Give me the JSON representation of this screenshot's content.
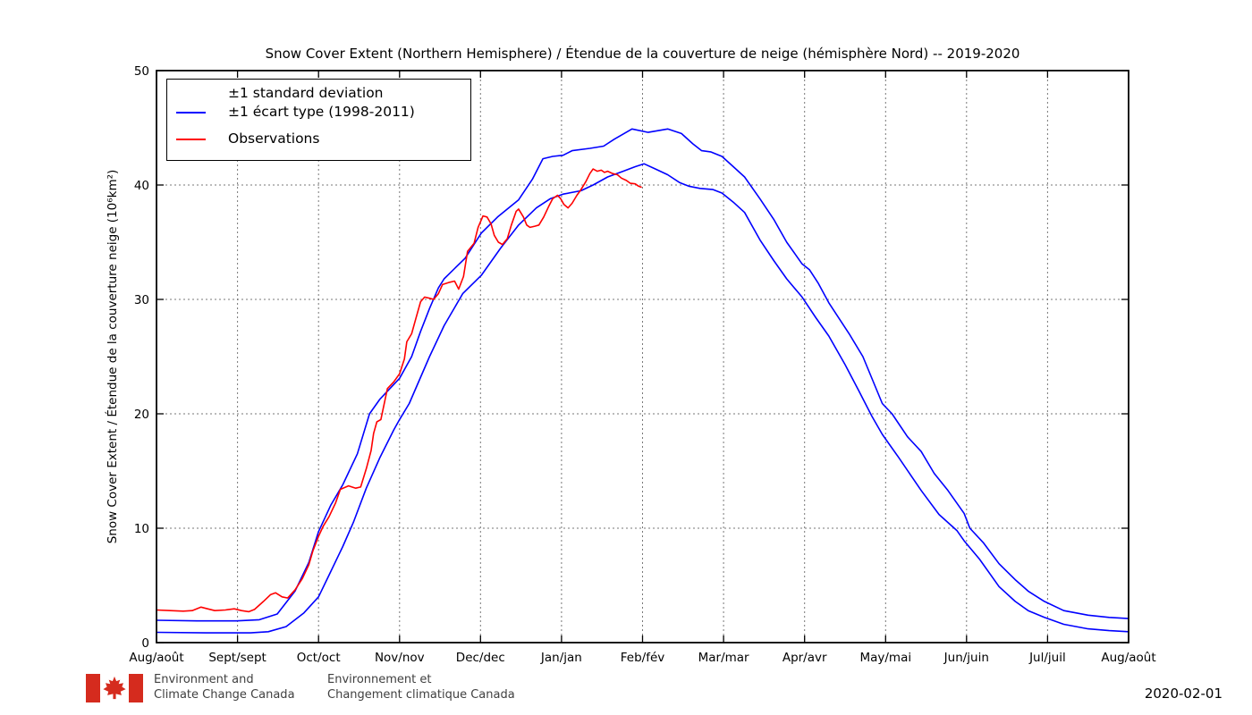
{
  "title": "Snow Cover Extent (Northern Hemisphere) / Étendue de la couverture de neige (hémisphère Nord) -- 2019-2020",
  "legend": {
    "std_line1": "±1 standard deviation",
    "std_line2": "±1 écart type (1998-2011)",
    "obs": "Observations"
  },
  "footer": {
    "dept_en_line1": "Environment and",
    "dept_en_line2": "Climate Change Canada",
    "dept_fr_line1": "Environnement et",
    "dept_fr_line2": "Changement climatique Canada",
    "date": "2020-02-01"
  },
  "colors": {
    "band": "#0000ff",
    "observations": "#ff0000",
    "grid": "#777777",
    "frame": "#000000",
    "flag_red": "#d52b1e",
    "footer_text": "#3f3f3f"
  },
  "chart_data": {
    "type": "line",
    "title": "Snow Cover Extent (Northern Hemisphere) / Étendue de la couverture de neige (hémisphère Nord) -- 2019-2020",
    "ylabel": "Snow Cover Extent / Étendue de la couverture neige (10⁶km²)",
    "xlabel": "",
    "x_unit": "months since Aug 1 (0 = Aug 1 2019, 12 = Aug 1 2020)",
    "x_tick_labels": [
      "Aug/août",
      "Sept/sept",
      "Oct/oct",
      "Nov/nov",
      "Dec/dec",
      "Jan/jan",
      "Feb/fév",
      "Mar/mar",
      "Apr/avr",
      "May/mai",
      "Jun/juin",
      "Jul/juil",
      "Aug/août"
    ],
    "y_ticks": [
      0,
      10,
      20,
      30,
      40,
      50
    ],
    "ylim": [
      0,
      50
    ],
    "xlim": [
      0,
      12
    ],
    "grid": "dotted",
    "legend_position": "upper left",
    "series": [
      {
        "name": "std_upper",
        "label": "±1 standard deviation / ±1 écart type (1998-2011) — upper",
        "color": "#0000ff",
        "points": [
          [
            0,
            1.95
          ],
          [
            0.5,
            1.9
          ],
          [
            0.99,
            1.9
          ],
          [
            1.27,
            2.0
          ],
          [
            1.49,
            2.5
          ],
          [
            1.71,
            4.5
          ],
          [
            1.88,
            7.0
          ],
          [
            2.0,
            9.7
          ],
          [
            2.15,
            12.0
          ],
          [
            2.3,
            13.8
          ],
          [
            2.48,
            16.5
          ],
          [
            2.63,
            20.0
          ],
          [
            2.76,
            21.3
          ],
          [
            3.0,
            23.1
          ],
          [
            3.15,
            25.0
          ],
          [
            3.26,
            27.2
          ],
          [
            3.37,
            29.2
          ],
          [
            3.48,
            31.0
          ],
          [
            3.55,
            31.8
          ],
          [
            3.81,
            33.6
          ],
          [
            4.01,
            35.8
          ],
          [
            4.21,
            37.2
          ],
          [
            4.47,
            38.7
          ],
          [
            4.64,
            40.5
          ],
          [
            4.77,
            42.3
          ],
          [
            4.89,
            42.5
          ],
          [
            5.02,
            42.6
          ],
          [
            5.13,
            43.0
          ],
          [
            5.35,
            43.2
          ],
          [
            5.52,
            43.4
          ],
          [
            5.65,
            44.0
          ],
          [
            5.87,
            44.9
          ],
          [
            6.07,
            44.6
          ],
          [
            6.31,
            44.9
          ],
          [
            6.48,
            44.5
          ],
          [
            6.62,
            43.6
          ],
          [
            6.73,
            43.0
          ],
          [
            6.84,
            42.9
          ],
          [
            6.98,
            42.5
          ],
          [
            7.12,
            41.6
          ],
          [
            7.26,
            40.7
          ],
          [
            7.45,
            38.8
          ],
          [
            7.62,
            37.0
          ],
          [
            7.78,
            35.0
          ],
          [
            7.97,
            33.1
          ],
          [
            8.06,
            32.6
          ],
          [
            8.17,
            31.4
          ],
          [
            8.3,
            29.7
          ],
          [
            8.55,
            27.0
          ],
          [
            8.72,
            25.0
          ],
          [
            8.96,
            20.9
          ],
          [
            9.08,
            20.0
          ],
          [
            9.27,
            18.0
          ],
          [
            9.44,
            16.7
          ],
          [
            9.6,
            14.8
          ],
          [
            9.77,
            13.3
          ],
          [
            9.97,
            11.3
          ],
          [
            10.04,
            10.0
          ],
          [
            10.21,
            8.7
          ],
          [
            10.4,
            6.9
          ],
          [
            10.6,
            5.5
          ],
          [
            10.76,
            4.5
          ],
          [
            10.96,
            3.6
          ],
          [
            11.2,
            2.8
          ],
          [
            11.5,
            2.4
          ],
          [
            11.76,
            2.2
          ],
          [
            12,
            2.1
          ]
        ]
      },
      {
        "name": "std_lower",
        "label": "±1 standard deviation / ±1 écart type (1998-2011) — lower",
        "color": "#0000ff",
        "points": [
          [
            0,
            0.9
          ],
          [
            0.61,
            0.85
          ],
          [
            1.16,
            0.85
          ],
          [
            1.38,
            0.95
          ],
          [
            1.6,
            1.4
          ],
          [
            1.82,
            2.6
          ],
          [
            2.0,
            4.0
          ],
          [
            2.15,
            6.2
          ],
          [
            2.3,
            8.4
          ],
          [
            2.43,
            10.5
          ],
          [
            2.59,
            13.5
          ],
          [
            2.76,
            16.2
          ],
          [
            2.93,
            18.6
          ],
          [
            3.0,
            19.5
          ],
          [
            3.12,
            20.9
          ],
          [
            3.37,
            25.0
          ],
          [
            3.55,
            27.7
          ],
          [
            3.78,
            30.5
          ],
          [
            4.01,
            32.1
          ],
          [
            4.25,
            34.5
          ],
          [
            4.47,
            36.5
          ],
          [
            4.69,
            38.0
          ],
          [
            4.86,
            38.8
          ],
          [
            5.02,
            39.2
          ],
          [
            5.24,
            39.5
          ],
          [
            5.39,
            40.0
          ],
          [
            5.57,
            40.7
          ],
          [
            5.76,
            41.2
          ],
          [
            5.91,
            41.6
          ],
          [
            6.02,
            41.85
          ],
          [
            6.16,
            41.4
          ],
          [
            6.31,
            40.9
          ],
          [
            6.46,
            40.2
          ],
          [
            6.57,
            39.9
          ],
          [
            6.71,
            39.7
          ],
          [
            6.87,
            39.6
          ],
          [
            6.98,
            39.3
          ],
          [
            7.12,
            38.5
          ],
          [
            7.26,
            37.6
          ],
          [
            7.45,
            35.2
          ],
          [
            7.62,
            33.4
          ],
          [
            7.78,
            31.8
          ],
          [
            7.97,
            30.2
          ],
          [
            8.14,
            28.4
          ],
          [
            8.3,
            26.8
          ],
          [
            8.5,
            24.3
          ],
          [
            8.67,
            22.0
          ],
          [
            8.83,
            19.8
          ],
          [
            8.96,
            18.2
          ],
          [
            9.16,
            16.2
          ],
          [
            9.44,
            13.3
          ],
          [
            9.66,
            11.2
          ],
          [
            9.88,
            9.8
          ],
          [
            9.97,
            8.9
          ],
          [
            10.16,
            7.3
          ],
          [
            10.4,
            4.9
          ],
          [
            10.6,
            3.6
          ],
          [
            10.76,
            2.8
          ],
          [
            10.96,
            2.2
          ],
          [
            11.2,
            1.6
          ],
          [
            11.5,
            1.2
          ],
          [
            11.76,
            1.05
          ],
          [
            12,
            0.95
          ]
        ]
      },
      {
        "name": "observations",
        "label": "Observations",
        "color": "#ff0000",
        "points": [
          [
            0,
            2.85
          ],
          [
            0.17,
            2.8
          ],
          [
            0.33,
            2.75
          ],
          [
            0.44,
            2.8
          ],
          [
            0.55,
            3.1
          ],
          [
            0.63,
            2.95
          ],
          [
            0.72,
            2.8
          ],
          [
            0.85,
            2.85
          ],
          [
            0.96,
            2.95
          ],
          [
            1.05,
            2.8
          ],
          [
            1.14,
            2.7
          ],
          [
            1.21,
            2.9
          ],
          [
            1.32,
            3.6
          ],
          [
            1.41,
            4.2
          ],
          [
            1.47,
            4.35
          ],
          [
            1.55,
            4.0
          ],
          [
            1.62,
            3.9
          ],
          [
            1.71,
            4.6
          ],
          [
            1.8,
            5.6
          ],
          [
            1.88,
            6.8
          ],
          [
            1.93,
            8.0
          ],
          [
            2.0,
            9.3
          ],
          [
            2.06,
            10.2
          ],
          [
            2.13,
            11.0
          ],
          [
            2.21,
            12.2
          ],
          [
            2.27,
            13.4
          ],
          [
            2.37,
            13.7
          ],
          [
            2.46,
            13.5
          ],
          [
            2.52,
            13.6
          ],
          [
            2.59,
            15.2
          ],
          [
            2.65,
            16.8
          ],
          [
            2.68,
            18.3
          ],
          [
            2.72,
            19.3
          ],
          [
            2.77,
            19.5
          ],
          [
            2.85,
            22.2
          ],
          [
            2.93,
            22.8
          ],
          [
            3.0,
            23.5
          ],
          [
            3.06,
            24.8
          ],
          [
            3.09,
            26.3
          ],
          [
            3.15,
            27.0
          ],
          [
            3.2,
            28.3
          ],
          [
            3.26,
            29.8
          ],
          [
            3.31,
            30.2
          ],
          [
            3.37,
            30.1
          ],
          [
            3.42,
            30.0
          ],
          [
            3.48,
            30.5
          ],
          [
            3.53,
            31.3
          ],
          [
            3.62,
            31.5
          ],
          [
            3.68,
            31.6
          ],
          [
            3.73,
            30.9
          ],
          [
            3.79,
            32.0
          ],
          [
            3.84,
            34.2
          ],
          [
            3.92,
            34.9
          ],
          [
            3.97,
            36.3
          ],
          [
            4.03,
            37.3
          ],
          [
            4.08,
            37.2
          ],
          [
            4.13,
            36.6
          ],
          [
            4.17,
            35.6
          ],
          [
            4.22,
            35.0
          ],
          [
            4.27,
            34.8
          ],
          [
            4.33,
            35.3
          ],
          [
            4.38,
            36.5
          ],
          [
            4.44,
            37.7
          ],
          [
            4.47,
            37.9
          ],
          [
            4.53,
            37.2
          ],
          [
            4.57,
            36.5
          ],
          [
            4.61,
            36.3
          ],
          [
            4.67,
            36.4
          ],
          [
            4.72,
            36.5
          ],
          [
            4.78,
            37.2
          ],
          [
            4.84,
            38.1
          ],
          [
            4.89,
            38.8
          ],
          [
            4.95,
            39.1
          ],
          [
            4.99,
            38.8
          ],
          [
            5.03,
            38.3
          ],
          [
            5.08,
            38.0
          ],
          [
            5.13,
            38.4
          ],
          [
            5.19,
            39.1
          ],
          [
            5.24,
            39.6
          ],
          [
            5.3,
            40.3
          ],
          [
            5.35,
            41.0
          ],
          [
            5.39,
            41.4
          ],
          [
            5.44,
            41.2
          ],
          [
            5.49,
            41.3
          ],
          [
            5.53,
            41.1
          ],
          [
            5.57,
            41.2
          ],
          [
            5.63,
            41.0
          ],
          [
            5.69,
            40.9
          ],
          [
            5.74,
            40.6
          ],
          [
            5.8,
            40.4
          ],
          [
            5.85,
            40.15
          ],
          [
            5.91,
            40.1
          ],
          [
            5.95,
            39.9
          ],
          [
            5.99,
            39.8
          ]
        ]
      }
    ]
  }
}
